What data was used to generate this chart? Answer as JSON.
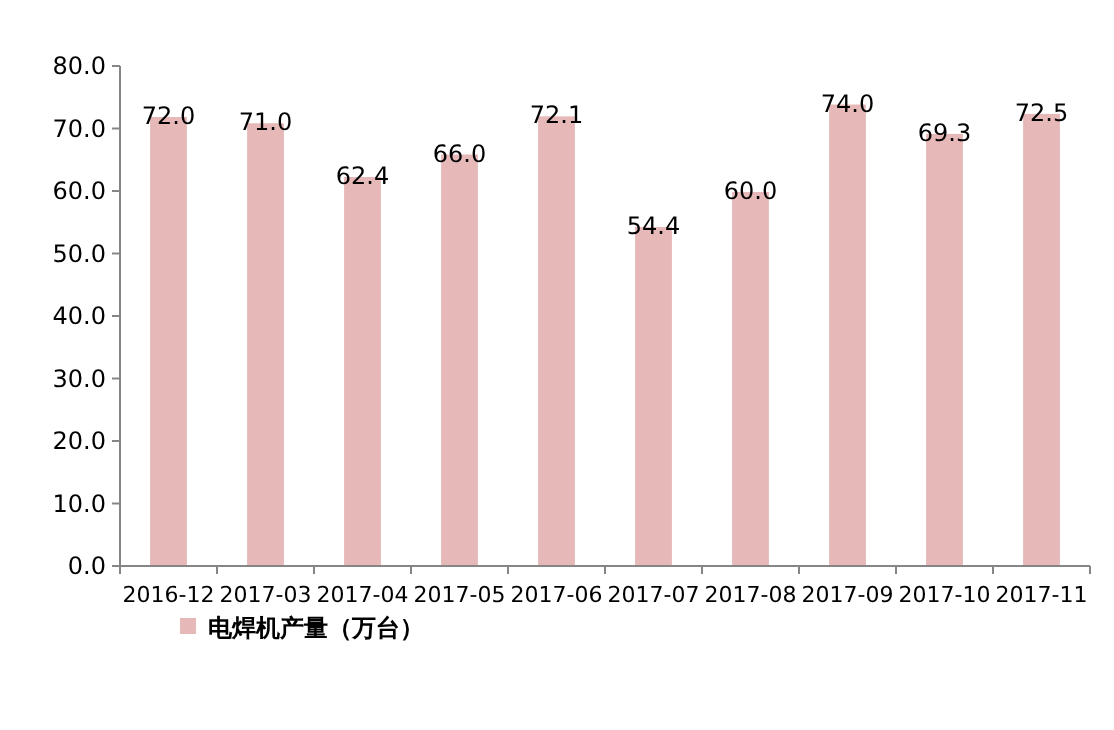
{
  "chart_data": {
    "type": "bar",
    "categories": [
      "2016-12",
      "2017-03",
      "2017-04",
      "2017-05",
      "2017-06",
      "2017-07",
      "2017-08",
      "2017-09",
      "2017-10",
      "2017-11"
    ],
    "series": [
      {
        "name": "电焊机产量（万台）",
        "color": "#e6b8b7",
        "values": [
          72.0,
          71.0,
          62.4,
          66.0,
          72.1,
          54.4,
          60.0,
          74.0,
          69.3,
          72.5
        ],
        "value_labels": [
          "72.0",
          "71.0",
          "62.4",
          "66.0",
          "72.1",
          "54.4",
          "60.0",
          "74.0",
          "69.3",
          "72.5"
        ]
      }
    ],
    "ylim": [
      0,
      80
    ],
    "yticks": [
      {
        "value": 0,
        "label": "0.0"
      },
      {
        "value": 10,
        "label": "10.0"
      },
      {
        "value": 20,
        "label": "20.0"
      },
      {
        "value": 30,
        "label": "30.0"
      },
      {
        "value": 40,
        "label": "40.0"
      },
      {
        "value": 50,
        "label": "50.0"
      },
      {
        "value": 60,
        "label": "60.0"
      },
      {
        "value": 70,
        "label": "70.0"
      },
      {
        "value": 80,
        "label": "80.0"
      }
    ],
    "legend": "bottom left"
  }
}
